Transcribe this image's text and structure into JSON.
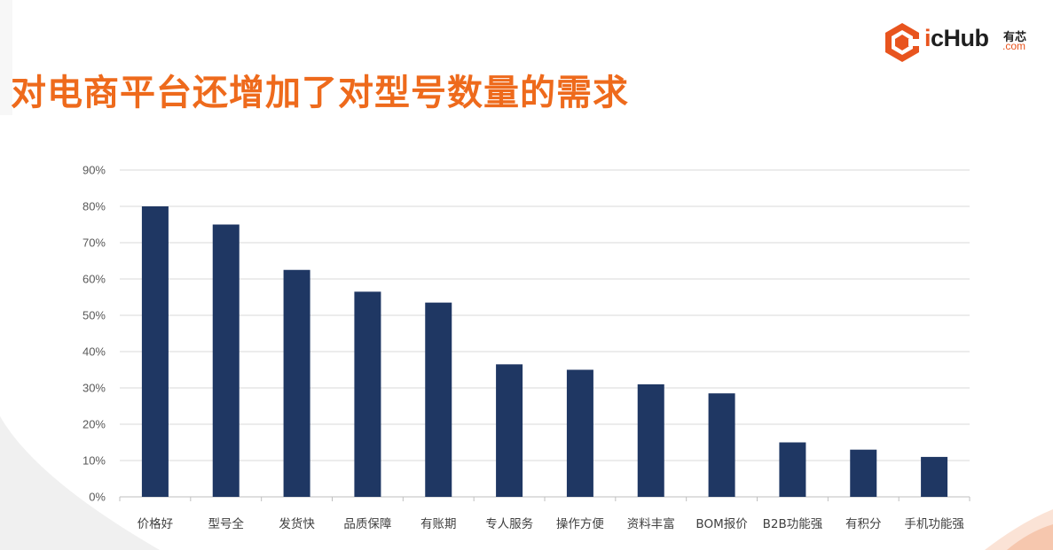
{
  "slide": {
    "title": "对电商平台还增加了对型号数量的需求"
  },
  "logo": {
    "word_i": "i",
    "word_rest": "cHub",
    "cn": "有芯",
    "com": ".com",
    "brand_color": "#e8541e"
  },
  "chart_data": {
    "type": "bar",
    "categories": [
      "价格好",
      "型号全",
      "发货快",
      "品质保障",
      "有账期",
      "专人服务",
      "操作方便",
      "资料丰富",
      "BOM报价",
      "B2B功能强",
      "有积分",
      "手机功能强"
    ],
    "values": [
      80,
      75,
      62.5,
      56.5,
      53.5,
      36.5,
      35,
      31,
      28.5,
      15,
      13,
      11
    ],
    "value_unit": "%",
    "ylim": [
      0,
      90
    ],
    "yticks": [
      "0%",
      "10%",
      "20%",
      "30%",
      "40%",
      "50%",
      "60%",
      "70%",
      "80%",
      "90%"
    ],
    "grid": true,
    "bar_color": "#1f3763",
    "title": "",
    "xlabel": "",
    "ylabel": ""
  }
}
